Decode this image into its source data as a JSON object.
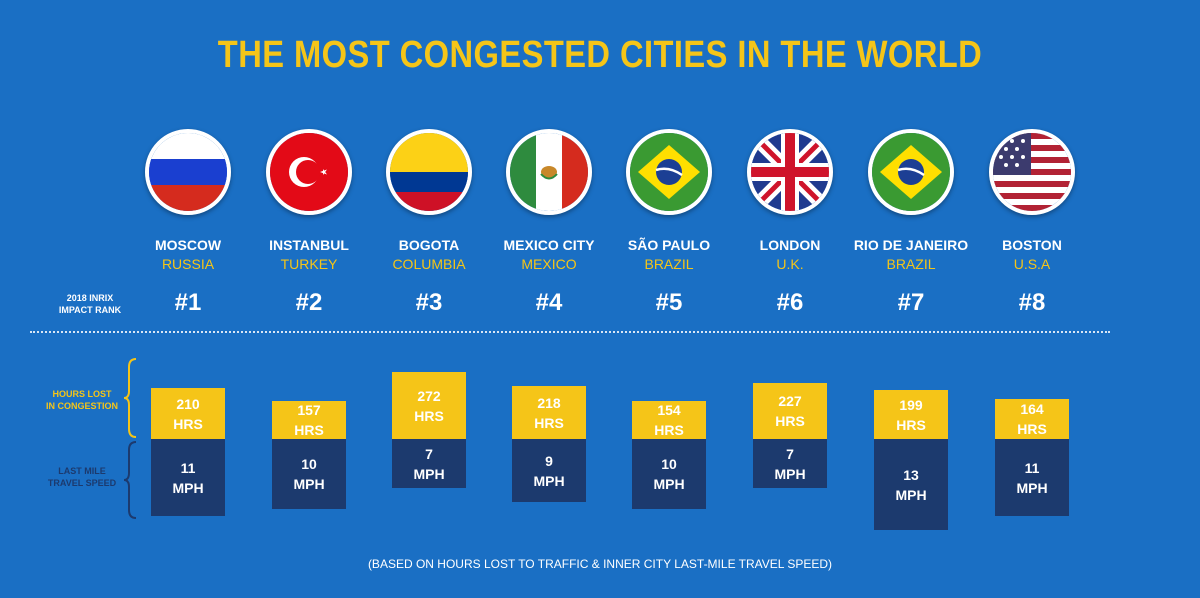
{
  "title": "THE MOST CONGESTED CITIES IN THE WORLD",
  "rank_label": [
    "2018 INRIX",
    "IMPACT RANK"
  ],
  "hours_label": [
    "HOURS LOST",
    "IN CONGESTION"
  ],
  "speed_label": [
    "LAST MILE",
    "TRAVEL SPEED"
  ],
  "footnote": "(BASED ON HOURS LOST TO TRAFFIC & INNER CITY LAST-MILE TRAVEL SPEED)",
  "hours_unit": "HRS",
  "speed_unit": "MPH",
  "colors": {
    "background": "#1a6fc4",
    "accent": "#f5c518",
    "navy": "#1c3a6e"
  },
  "chart_data": {
    "type": "bar",
    "title": "THE MOST CONGESTED CITIES IN THE WORLD",
    "categories": [
      "MOSCOW",
      "INSTANBUL",
      "BOGOTA",
      "MEXICO CITY",
      "SÃO PAULO",
      "LONDON",
      "RIO DE JANEIRO",
      "BOSTON"
    ],
    "countries": [
      "RUSSIA",
      "TURKEY",
      "COLUMBIA",
      "MEXICO",
      "BRAZIL",
      "U.K.",
      "BRAZIL",
      "U.S.A"
    ],
    "flags": [
      "russia-flag",
      "turkey-flag",
      "colombia-flag",
      "mexico-flag",
      "brazil-flag",
      "uk-flag",
      "brazil-flag",
      "usa-flag"
    ],
    "ranks": [
      "#1",
      "#2",
      "#3",
      "#4",
      "#5",
      "#6",
      "#7",
      "#8"
    ],
    "series": [
      {
        "name": "HOURS LOST IN CONGESTION",
        "unit": "HRS",
        "values": [
          210,
          157,
          272,
          218,
          154,
          227,
          199,
          164
        ]
      },
      {
        "name": "LAST MILE TRAVEL SPEED",
        "unit": "MPH",
        "values": [
          11,
          10,
          7,
          9,
          10,
          7,
          13,
          11
        ]
      }
    ]
  }
}
